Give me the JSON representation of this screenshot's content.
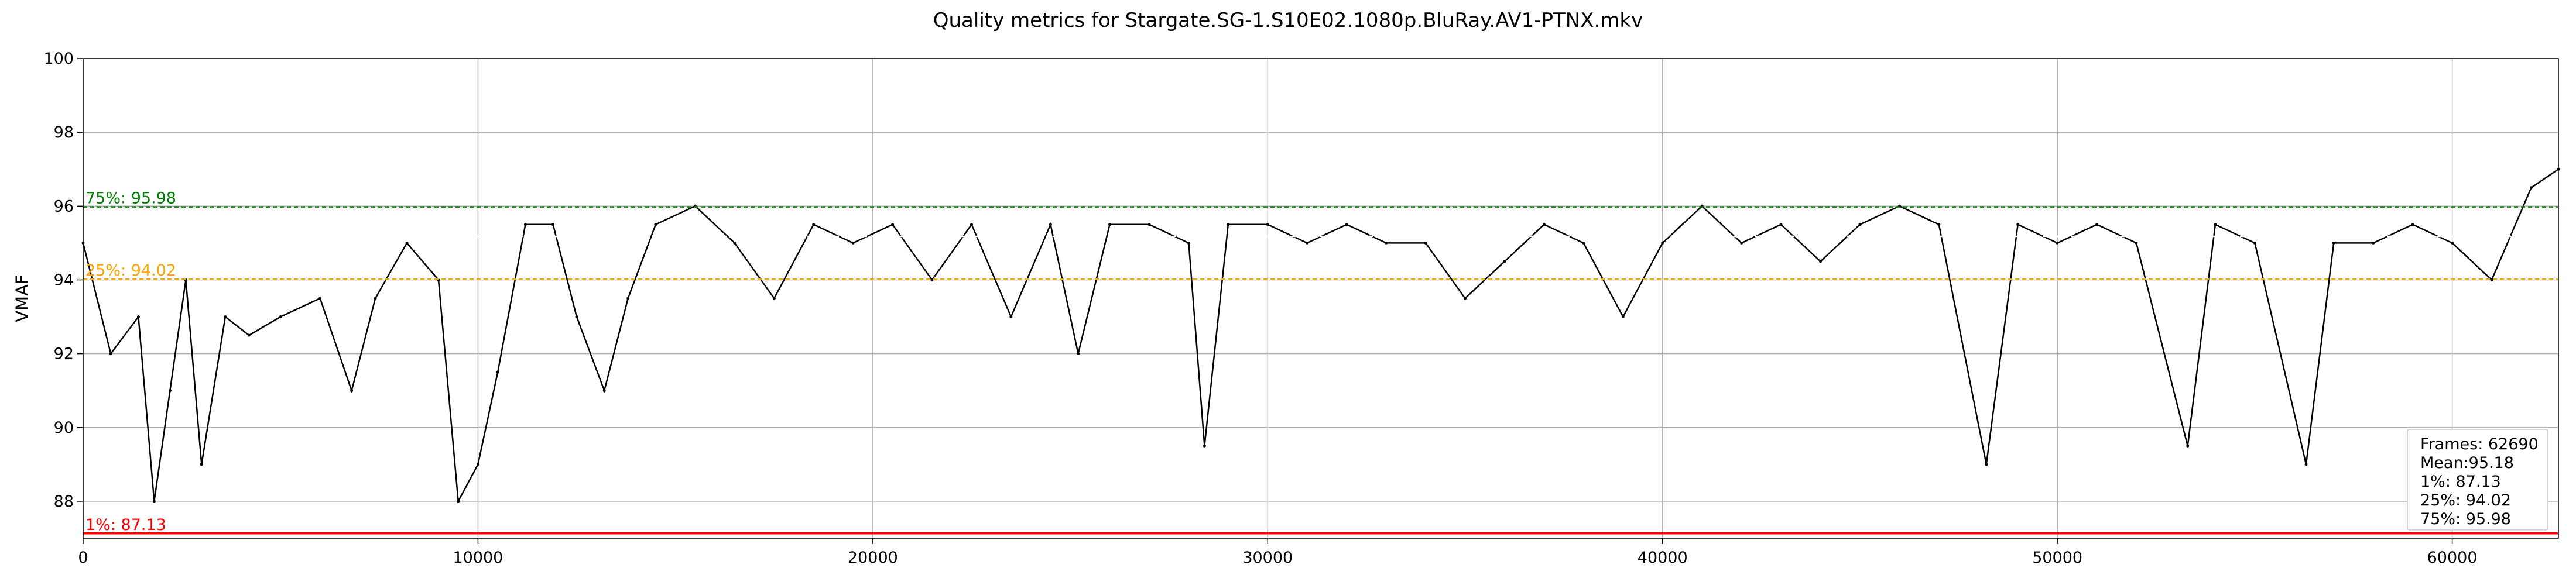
{
  "chart_data": {
    "type": "line",
    "title": "Quality metrics for Stargate.SG-1.S10E02.1080p.BluRay.AV1-PTNX.mkv",
    "xlabel": "",
    "ylabel": "VMAF",
    "xlim": [
      0,
      62690
    ],
    "ylim": [
      87,
      100
    ],
    "x_ticks": [
      0,
      10000,
      20000,
      30000,
      40000,
      50000,
      60000
    ],
    "y_ticks": [
      88,
      90,
      92,
      94,
      96,
      98,
      100
    ],
    "grid": true,
    "legend": "none",
    "series": [
      {
        "color": "#000000",
        "points": [
          [
            0,
            95.0
          ],
          [
            700,
            92.0
          ],
          [
            1400,
            93.0
          ],
          [
            1800,
            88.0
          ],
          [
            2200,
            91.0
          ],
          [
            2600,
            94.0
          ],
          [
            3000,
            89.0
          ],
          [
            3600,
            93.0
          ],
          [
            4200,
            92.5
          ],
          [
            5000,
            93.0
          ],
          [
            6000,
            93.5
          ],
          [
            6800,
            91.0
          ],
          [
            7400,
            93.5
          ],
          [
            8200,
            95.0
          ],
          [
            9000,
            94.0
          ],
          [
            9500,
            88.0
          ],
          [
            10000,
            89.0
          ],
          [
            10500,
            91.5
          ],
          [
            11200,
            95.5
          ],
          [
            11900,
            95.5
          ],
          [
            12500,
            93.0
          ],
          [
            13200,
            91.0
          ],
          [
            13800,
            93.5
          ],
          [
            14500,
            95.5
          ],
          [
            15500,
            96.0
          ],
          [
            16500,
            95.0
          ],
          [
            17500,
            93.5
          ],
          [
            18500,
            95.5
          ],
          [
            19500,
            95.0
          ],
          [
            20500,
            95.5
          ],
          [
            21500,
            94.0
          ],
          [
            22500,
            95.5
          ],
          [
            23500,
            93.0
          ],
          [
            24500,
            95.5
          ],
          [
            25200,
            92.0
          ],
          [
            26000,
            95.5
          ],
          [
            27000,
            95.5
          ],
          [
            28000,
            95.0
          ],
          [
            28400,
            89.5
          ],
          [
            29000,
            95.5
          ],
          [
            30000,
            95.5
          ],
          [
            31000,
            95.0
          ],
          [
            32000,
            95.5
          ],
          [
            33000,
            95.0
          ],
          [
            34000,
            95.0
          ],
          [
            35000,
            93.5
          ],
          [
            36000,
            94.5
          ],
          [
            37000,
            95.5
          ],
          [
            38000,
            95.0
          ],
          [
            39000,
            93.0
          ],
          [
            40000,
            95.0
          ],
          [
            41000,
            96.0
          ],
          [
            42000,
            95.0
          ],
          [
            43000,
            95.5
          ],
          [
            44000,
            94.5
          ],
          [
            45000,
            95.5
          ],
          [
            46000,
            96.0
          ],
          [
            47000,
            95.5
          ],
          [
            48200,
            89.0
          ],
          [
            49000,
            95.5
          ],
          [
            50000,
            95.0
          ],
          [
            51000,
            95.5
          ],
          [
            52000,
            95.0
          ],
          [
            53300,
            89.5
          ],
          [
            54000,
            95.5
          ],
          [
            55000,
            95.0
          ],
          [
            56300,
            89.0
          ],
          [
            57000,
            95.0
          ],
          [
            58000,
            95.0
          ],
          [
            59000,
            95.5
          ],
          [
            60000,
            95.0
          ],
          [
            61000,
            94.0
          ],
          [
            62000,
            96.5
          ],
          [
            62690,
            97.0
          ]
        ]
      }
    ],
    "reference_lines": [
      {
        "label": "75%: 95.98",
        "value": 95.98,
        "color": "#008000",
        "style": "dashed"
      },
      {
        "label": "Mean: 95.18",
        "value": 95.18,
        "color": "#ffffff",
        "style": "dashed"
      },
      {
        "label": "25%: 94.02",
        "value": 94.02,
        "color": "#ffa500",
        "style": "dashed"
      },
      {
        "label": "1%: 87.13",
        "value": 87.13,
        "color": "#ff0000",
        "style": "solid"
      }
    ],
    "stats_box": {
      "position": "bottom-right",
      "lines": [
        "Frames: 62690",
        "Mean:95.18",
        "1%: 87.13",
        "25%: 94.02",
        "75%: 95.98"
      ]
    }
  }
}
